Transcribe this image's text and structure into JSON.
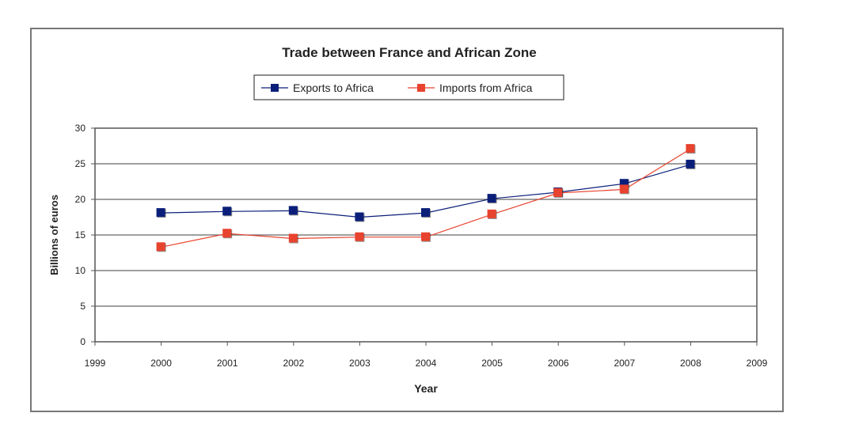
{
  "chart_data": {
    "type": "line",
    "title": "Trade between France and African Zone",
    "xlabel": "Year",
    "ylabel": "Billions of euros",
    "xlim": [
      1999,
      2009
    ],
    "ylim": [
      0,
      30
    ],
    "x_ticks": [
      1999,
      2000,
      2001,
      2002,
      2003,
      2004,
      2005,
      2006,
      2007,
      2008,
      2009
    ],
    "y_ticks": [
      0,
      5,
      10,
      15,
      20,
      25,
      30
    ],
    "grid": true,
    "legend_position": "top-center",
    "x": [
      2000,
      2001,
      2002,
      2003,
      2004,
      2005,
      2006,
      2007,
      2008
    ],
    "series": [
      {
        "name": "Exports to Africa",
        "color": "#0b1f7a",
        "values": [
          18.1,
          18.3,
          18.4,
          17.5,
          18.1,
          20.1,
          21.0,
          22.2,
          24.9
        ]
      },
      {
        "name": "Imports from Africa",
        "color": "#e8432e",
        "values": [
          13.3,
          15.2,
          14.5,
          14.7,
          14.7,
          17.9,
          20.9,
          21.4,
          27.1
        ]
      }
    ]
  }
}
